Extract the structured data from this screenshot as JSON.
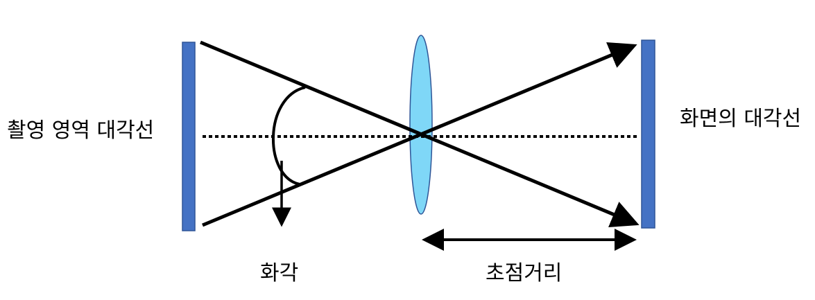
{
  "labels": {
    "capture_diagonal": "촬영 영역 대각선",
    "screen_diagonal": "화면의 대각선",
    "angle_of_view": "화각",
    "focal_length": "초점거리"
  },
  "colors": {
    "plate": "#4472c4",
    "plate_border": "#2f5597",
    "lens": "#7fd7f7",
    "lens_border": "#2f5597",
    "line": "#000000"
  }
}
